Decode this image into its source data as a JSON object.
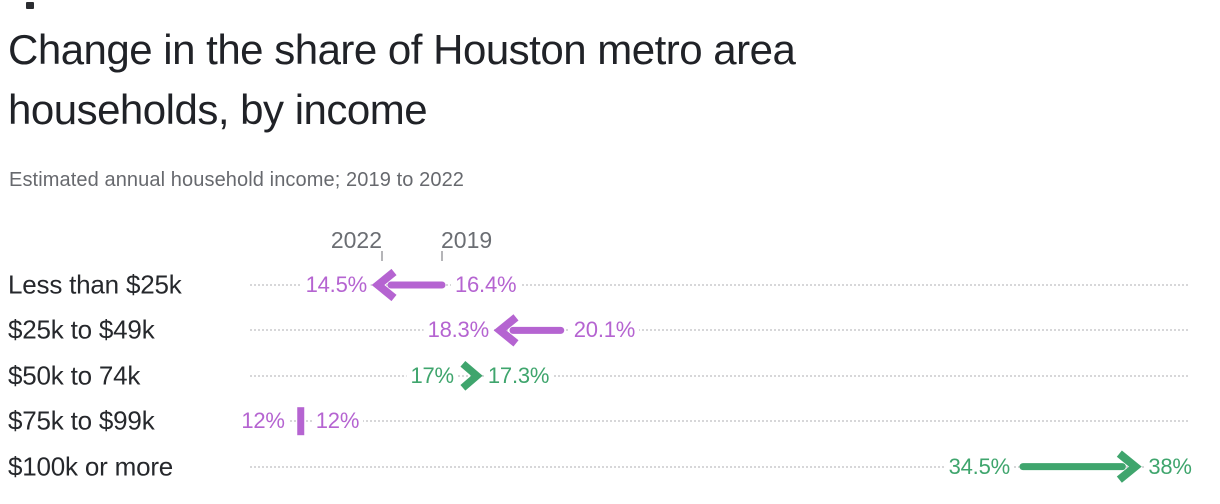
{
  "header": {
    "title_line1": "Change in the share of Houston metro area",
    "title_line2": "households, by income",
    "subtitle": "Estimated annual household income; 2019 to 2022"
  },
  "chart_data": {
    "type": "arrow",
    "title": "Change in the share of Houston metro area households, by income",
    "subtitle": "Estimated annual household income; 2019 to 2022",
    "categories": [
      "Less than $25k",
      "$25k to $49k",
      "$50k to 74k",
      "$75k to $99k",
      "$100k or more"
    ],
    "series": [
      {
        "name": "2019",
        "values": [
          16.4,
          20.1,
          17.0,
          12.0,
          34.5
        ]
      },
      {
        "name": "2022",
        "values": [
          14.5,
          18.3,
          17.3,
          12.0,
          38.0
        ]
      }
    ],
    "rows": [
      {
        "category": "Less than $25k",
        "start": 16.4,
        "end": 14.5,
        "start_label": "16.4%",
        "end_label": "14.5%",
        "direction": "decrease"
      },
      {
        "category": "$25k to $49k",
        "start": 20.1,
        "end": 18.3,
        "start_label": "20.1%",
        "end_label": "18.3%",
        "direction": "decrease"
      },
      {
        "category": "$50k to 74k",
        "start": 17.0,
        "end": 17.3,
        "start_label": "17%",
        "end_label": "17.3%",
        "direction": "increase"
      },
      {
        "category": "$75k to $99k",
        "start": 12.0,
        "end": 12.0,
        "start_label": "12%",
        "end_label": "12%",
        "direction": "no_change"
      },
      {
        "category": "$100k or more",
        "start": 34.5,
        "end": 38.0,
        "start_label": "34.5%",
        "end_label": "38%",
        "direction": "increase"
      }
    ],
    "axis": {
      "end_year_label": "2022",
      "start_year_label": "2019"
    },
    "colors": {
      "decrease": "#b564d1",
      "increase": "#3fa56d",
      "no_change": "#b564d1"
    },
    "layout_hints": {
      "gridlines": "dotted horizontal per row",
      "legend_position": "ticks above first row",
      "value_labels": "at arrow endpoints",
      "x_unit": "percent of households"
    }
  }
}
